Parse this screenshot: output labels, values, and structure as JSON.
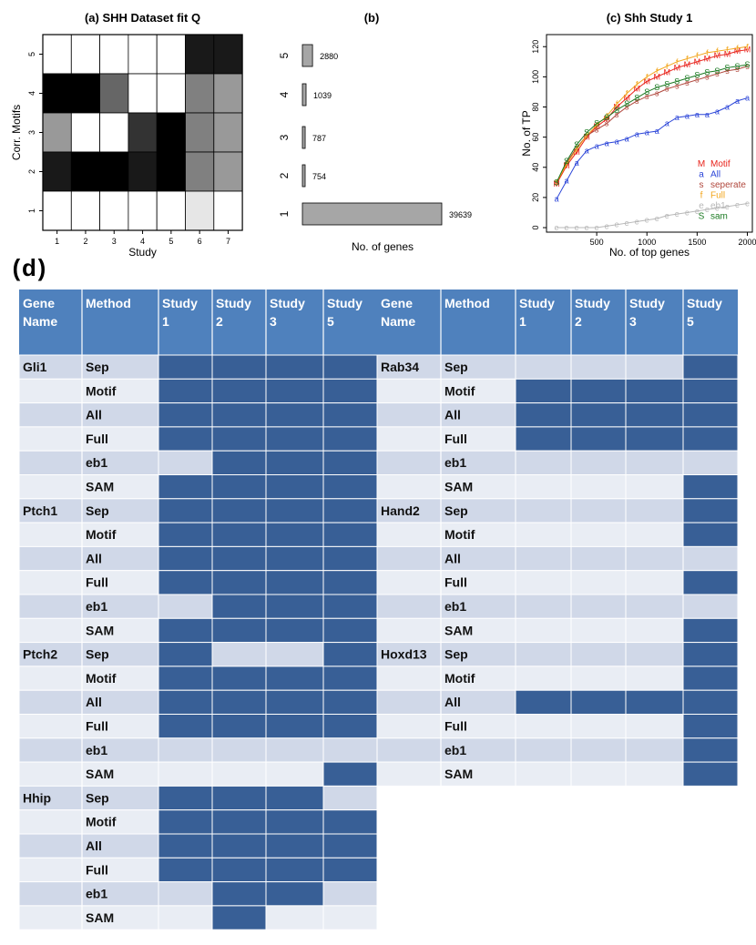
{
  "chart_data": [
    {
      "type": "heatmap",
      "panel": "a",
      "title": "(a) SHH Dataset fit Q",
      "xlabel": "Study",
      "ylabel": "Corr. Motifs",
      "x_ticks": [
        "1",
        "2",
        "3",
        "4",
        "5",
        "6",
        "7"
      ],
      "y_ticks": [
        "1",
        "2",
        "3",
        "4",
        "5"
      ],
      "grid_rows_top_to_bottom": [
        [
          0,
          0,
          0,
          0,
          0,
          0.9,
          0.9
        ],
        [
          1,
          1,
          0.6,
          0,
          0,
          0.5,
          0.4
        ],
        [
          0.4,
          0,
          0,
          0.8,
          1,
          0.5,
          0.4
        ],
        [
          0.9,
          1,
          1,
          0.9,
          1,
          0.5,
          0.4
        ],
        [
          0,
          0,
          0,
          0,
          0,
          0.1,
          0
        ]
      ]
    },
    {
      "type": "bar",
      "panel": "b",
      "title": "(b)",
      "xlabel": "No. of genes",
      "orientation": "horizontal",
      "categories": [
        "1",
        "2",
        "3",
        "4",
        "5"
      ],
      "values": [
        39639,
        754,
        787,
        1039,
        2880
      ],
      "value_labels": [
        "39639",
        "754",
        "787",
        "1039",
        "2880"
      ],
      "xlim": [
        0,
        40000
      ]
    },
    {
      "type": "line",
      "panel": "c",
      "title": "(c) Shh Study 1",
      "xlabel": "No. of top genes",
      "ylabel": "No. of TP",
      "xlim": [
        0,
        2050
      ],
      "ylim": [
        -3,
        128
      ],
      "x_ticks": [
        "500",
        "1000",
        "1500",
        "2000"
      ],
      "y_ticks": [
        "0",
        "20",
        "40",
        "60",
        "80",
        "100",
        "120"
      ],
      "x": [
        100,
        200,
        300,
        400,
        500,
        600,
        700,
        800,
        900,
        1000,
        1100,
        1200,
        1300,
        1400,
        1500,
        1600,
        1700,
        1800,
        1900,
        2000
      ],
      "series": [
        {
          "name": "Motif",
          "marker": "M",
          "color": "#e8231b",
          "values": [
            29,
            41,
            50,
            60,
            67,
            72,
            80,
            86,
            92,
            97,
            100,
            103,
            106,
            108,
            110,
            112,
            114,
            115,
            117,
            118
          ]
        },
        {
          "name": "All",
          "marker": "a",
          "color": "#2b45d8",
          "values": [
            19,
            31,
            43,
            51,
            54,
            56,
            57,
            59,
            62,
            63,
            64,
            69,
            73,
            74,
            75,
            75,
            77,
            80,
            84,
            86
          ]
        },
        {
          "name": "seperate",
          "marker": "s",
          "color": "#b0473c",
          "values": [
            30,
            43,
            53,
            61,
            65,
            69,
            75,
            80,
            84,
            87,
            89,
            92,
            94,
            96,
            98,
            100,
            102,
            104,
            105,
            107
          ]
        },
        {
          "name": "Full",
          "marker": "f",
          "color": "#f2a51c",
          "values": [
            30,
            42,
            52,
            61,
            68,
            74,
            82,
            89,
            95,
            100,
            104,
            107,
            110,
            112,
            114,
            116,
            117,
            118,
            119,
            120
          ]
        },
        {
          "name": "eb1",
          "marker": "e",
          "color": "#b8b8b8",
          "values": [
            0,
            0,
            0,
            0,
            0,
            1,
            2,
            3,
            4,
            5,
            6,
            8,
            9,
            10,
            11,
            12,
            13,
            14,
            15,
            16
          ]
        },
        {
          "name": "sam",
          "marker": "S",
          "color": "#1b7a22",
          "values": [
            30,
            44,
            55,
            63,
            69,
            73,
            78,
            82,
            86,
            90,
            93,
            95,
            97,
            99,
            101,
            103,
            104,
            106,
            107,
            108
          ]
        }
      ]
    },
    {
      "type": "table",
      "panel": "d",
      "title": "(d)",
      "header": [
        "Gene Name",
        "Method",
        "Study 1",
        "Study 2",
        "Study 3",
        "Study 5"
      ],
      "groups": [
        {
          "gene": "Gli1",
          "rows": [
            {
              "method": "Sep",
              "flags": [
                1,
                1,
                1,
                1
              ]
            },
            {
              "method": "Motif",
              "flags": [
                1,
                1,
                1,
                1
              ]
            },
            {
              "method": "All",
              "flags": [
                1,
                1,
                1,
                1
              ]
            },
            {
              "method": "Full",
              "flags": [
                1,
                1,
                1,
                1
              ]
            },
            {
              "method": "eb1",
              "flags": [
                0,
                1,
                1,
                1
              ]
            },
            {
              "method": "SAM",
              "flags": [
                1,
                1,
                1,
                1
              ]
            }
          ]
        },
        {
          "gene": "Ptch1",
          "rows": [
            {
              "method": "Sep",
              "flags": [
                1,
                1,
                1,
                1
              ]
            },
            {
              "method": "Motif",
              "flags": [
                1,
                1,
                1,
                1
              ]
            },
            {
              "method": "All",
              "flags": [
                1,
                1,
                1,
                1
              ]
            },
            {
              "method": "Full",
              "flags": [
                1,
                1,
                1,
                1
              ]
            },
            {
              "method": "eb1",
              "flags": [
                0,
                1,
                1,
                1
              ]
            },
            {
              "method": "SAM",
              "flags": [
                1,
                1,
                1,
                1
              ]
            }
          ]
        },
        {
          "gene": "Ptch2",
          "rows": [
            {
              "method": "Sep",
              "flags": [
                1,
                0,
                0,
                1
              ]
            },
            {
              "method": "Motif",
              "flags": [
                1,
                1,
                1,
                1
              ]
            },
            {
              "method": "All",
              "flags": [
                1,
                1,
                1,
                1
              ]
            },
            {
              "method": "Full",
              "flags": [
                1,
                1,
                1,
                1
              ]
            },
            {
              "method": "eb1",
              "flags": [
                0,
                0,
                0,
                0
              ]
            },
            {
              "method": "SAM",
              "flags": [
                0,
                0,
                0,
                1
              ]
            }
          ]
        },
        {
          "gene": "Hhip",
          "rows": [
            {
              "method": "Sep",
              "flags": [
                1,
                1,
                1,
                0
              ]
            },
            {
              "method": "Motif",
              "flags": [
                1,
                1,
                1,
                1
              ]
            },
            {
              "method": "All",
              "flags": [
                1,
                1,
                1,
                1
              ]
            },
            {
              "method": "Full",
              "flags": [
                1,
                1,
                1,
                1
              ]
            },
            {
              "method": "eb1",
              "flags": [
                0,
                1,
                1,
                0
              ]
            },
            {
              "method": "SAM",
              "flags": [
                0,
                1,
                0,
                0
              ]
            }
          ]
        },
        {
          "gene": "Rab34",
          "rows": [
            {
              "method": "Sep",
              "flags": [
                0,
                0,
                0,
                1
              ]
            },
            {
              "method": "Motif",
              "flags": [
                1,
                1,
                1,
                1
              ]
            },
            {
              "method": "All",
              "flags": [
                1,
                1,
                1,
                1
              ]
            },
            {
              "method": "Full",
              "flags": [
                1,
                1,
                1,
                1
              ]
            },
            {
              "method": "eb1",
              "flags": [
                0,
                0,
                0,
                0
              ]
            },
            {
              "method": "SAM",
              "flags": [
                0,
                0,
                0,
                1
              ]
            }
          ]
        },
        {
          "gene": "Hand2",
          "rows": [
            {
              "method": "Sep",
              "flags": [
                0,
                0,
                0,
                1
              ]
            },
            {
              "method": "Motif",
              "flags": [
                0,
                0,
                0,
                1
              ]
            },
            {
              "method": "All",
              "flags": [
                0,
                0,
                0,
                0
              ]
            },
            {
              "method": "Full",
              "flags": [
                0,
                0,
                0,
                1
              ]
            },
            {
              "method": "eb1",
              "flags": [
                0,
                0,
                0,
                0
              ]
            },
            {
              "method": "SAM",
              "flags": [
                0,
                0,
                0,
                1
              ]
            }
          ]
        },
        {
          "gene": "Hoxd13",
          "rows": [
            {
              "method": "Sep",
              "flags": [
                0,
                0,
                0,
                1
              ]
            },
            {
              "method": "Motif",
              "flags": [
                0,
                0,
                0,
                1
              ]
            },
            {
              "method": "All",
              "flags": [
                1,
                1,
                1,
                1
              ]
            },
            {
              "method": "Full",
              "flags": [
                0,
                0,
                0,
                1
              ]
            },
            {
              "method": "eb1",
              "flags": [
                0,
                0,
                0,
                1
              ]
            },
            {
              "method": "SAM",
              "flags": [
                0,
                0,
                0,
                1
              ]
            }
          ]
        }
      ]
    }
  ],
  "colors": {
    "header_bg": "#4f81bd",
    "filled": "#385f96",
    "row_dark": "#d0d8e8",
    "row_light": "#e9edf4",
    "bar_fill": "#a6a6a6"
  }
}
